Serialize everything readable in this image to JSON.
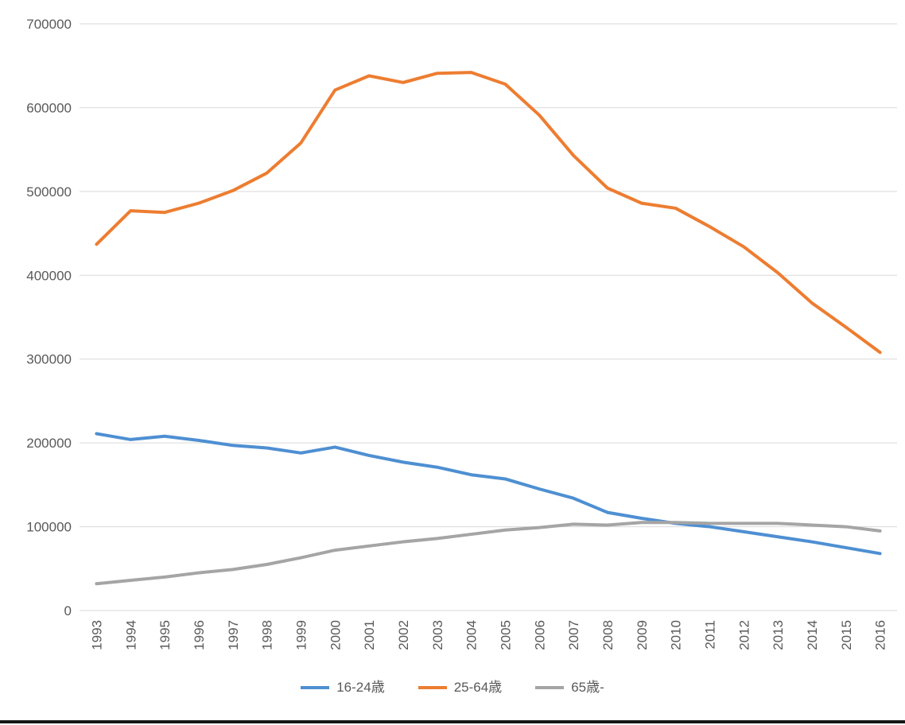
{
  "chart_data": {
    "type": "line",
    "x": [
      "1993",
      "1994",
      "1995",
      "1996",
      "1997",
      "1998",
      "1999",
      "2000",
      "2001",
      "2002",
      "2003",
      "2004",
      "2005",
      "2006",
      "2007",
      "2008",
      "2009",
      "2010",
      "2011",
      "2012",
      "2013",
      "2014",
      "2015",
      "2016"
    ],
    "series": [
      {
        "name": "16-24歳",
        "color": "#4e8fd2",
        "values": [
          211000,
          204000,
          208000,
          203000,
          197000,
          194000,
          188000,
          195000,
          185000,
          177000,
          171000,
          162000,
          157000,
          145000,
          134000,
          117000,
          110000,
          104000,
          100000,
          94000,
          88000,
          82000,
          75000,
          68000
        ]
      },
      {
        "name": "25-64歳",
        "color": "#ed7d31",
        "values": [
          437000,
          477000,
          475000,
          486000,
          501000,
          522000,
          558000,
          621000,
          638000,
          630000,
          641000,
          642000,
          628000,
          591000,
          543000,
          504000,
          486000,
          480000,
          458000,
          434000,
          403000,
          367000,
          338000,
          308000
        ]
      },
      {
        "name": "65歳-",
        "color": "#a5a5a5",
        "values": [
          32000,
          36000,
          40000,
          45000,
          49000,
          55000,
          63000,
          72000,
          77000,
          82000,
          86000,
          91000,
          96000,
          99000,
          103000,
          102000,
          105000,
          105000,
          104000,
          104000,
          104000,
          102000,
          100000,
          95000
        ]
      }
    ],
    "title": "",
    "xlabel": "",
    "ylabel": "",
    "ylim": [
      0,
      700000
    ],
    "yticks": [
      0,
      100000,
      200000,
      300000,
      400000,
      500000,
      600000,
      700000
    ],
    "ytick_labels": [
      "0",
      "100000",
      "200000",
      "300000",
      "400000",
      "500000",
      "600000",
      "700000"
    ],
    "grid": true,
    "legend_position": "bottom"
  },
  "colors": {
    "background": "#ffffff",
    "grid": "#d9d9d9",
    "axis_text": "#595959",
    "bottom_border": "#161616"
  }
}
